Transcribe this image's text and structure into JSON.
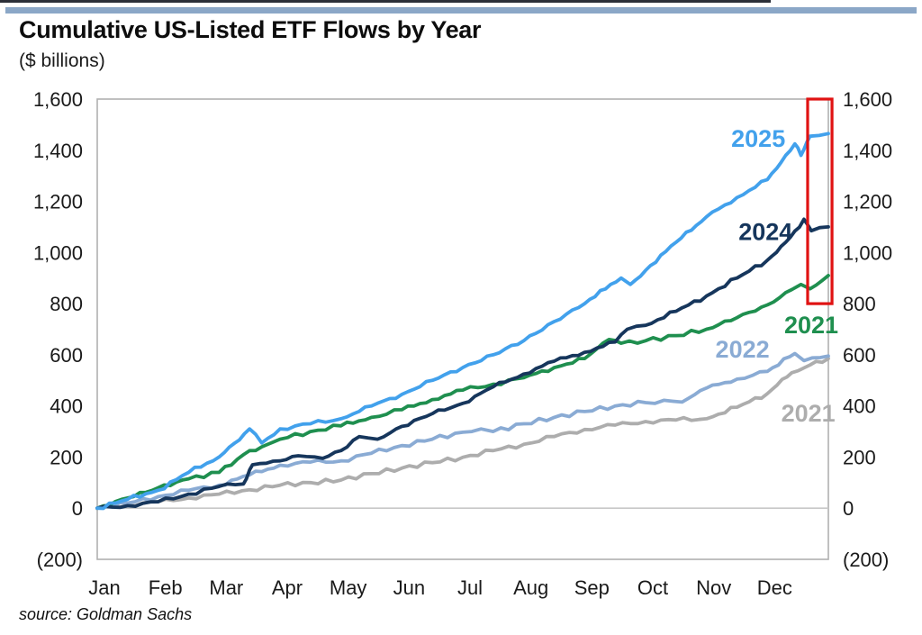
{
  "page": {
    "title": "Cumulative US-Listed ETF Flows by Year",
    "subtitle": "($ billions)",
    "source": "source: Goldman Sachs",
    "top_bar_color": "#8ba7c7"
  },
  "chart_data": {
    "type": "line",
    "title": "Cumulative US-Listed ETF Flows by Year",
    "units": "$ billions",
    "grid": "zero-line-only",
    "legend": "inline-labels-at-line-ends",
    "x_axis": {
      "labels": [
        "Jan",
        "Feb",
        "Mar",
        "Apr",
        "May",
        "Jun",
        "Jul",
        "Aug",
        "Sep",
        "Oct",
        "Nov",
        "Dec"
      ],
      "range_months": [
        0,
        12
      ]
    },
    "y_axis": {
      "ylim": [
        -200,
        1600
      ],
      "tick_values": [
        1600,
        1400,
        1200,
        1000,
        800,
        600,
        400,
        200,
        0,
        -200
      ],
      "tick_labels": [
        "1,600",
        "1,400",
        "1,200",
        "1,000",
        "800",
        "600",
        "400",
        "200",
        "0",
        "(200)"
      ],
      "sides": "both"
    },
    "annotations": {
      "highlight_box": {
        "note": "red box highlighting year-end values",
        "color": "#e01212",
        "month_start": 11.66,
        "month_end": 12.06,
        "value_top": 1600,
        "value_bottom": 800
      }
    },
    "series": [
      {
        "name": "2021-gray",
        "label": "2021",
        "color": "#adadad",
        "label_x_month": 11.67,
        "label_value": 370,
        "points": [
          [
            0,
            0
          ],
          [
            0.5,
            12
          ],
          [
            1,
            25
          ],
          [
            1.5,
            40
          ],
          [
            2,
            55
          ],
          [
            2.5,
            72
          ],
          [
            3,
            90
          ],
          [
            3.5,
            100
          ],
          [
            4,
            110
          ],
          [
            4.5,
            135
          ],
          [
            5,
            157
          ],
          [
            5.5,
            178
          ],
          [
            6,
            199
          ],
          [
            6.5,
            225
          ],
          [
            7,
            250
          ],
          [
            7.5,
            280
          ],
          [
            8,
            308
          ],
          [
            8.5,
            325
          ],
          [
            9,
            339
          ],
          [
            9.5,
            345
          ],
          [
            10,
            350
          ],
          [
            10.5,
            395
          ],
          [
            11,
            448
          ],
          [
            11.4,
            530
          ],
          [
            11.7,
            560
          ],
          [
            12,
            585
          ]
        ]
      },
      {
        "name": "2022",
        "label": "2022",
        "color": "#8aabd4",
        "label_x_month": 10.59,
        "label_value": 620,
        "points": [
          [
            0,
            0
          ],
          [
            0.5,
            20
          ],
          [
            1,
            45
          ],
          [
            1.5,
            70
          ],
          [
            2,
            90
          ],
          [
            2.5,
            130
          ],
          [
            3,
            168
          ],
          [
            3.5,
            180
          ],
          [
            4,
            185
          ],
          [
            4.5,
            215
          ],
          [
            5,
            245
          ],
          [
            5.5,
            270
          ],
          [
            6,
            297
          ],
          [
            6.3,
            310
          ],
          [
            6.5,
            300
          ],
          [
            7,
            330
          ],
          [
            7.5,
            355
          ],
          [
            8,
            378
          ],
          [
            8.5,
            400
          ],
          [
            9,
            413
          ],
          [
            9.3,
            422
          ],
          [
            9.6,
            415
          ],
          [
            10,
            470
          ],
          [
            10.5,
            505
          ],
          [
            11,
            535
          ],
          [
            11.45,
            605
          ],
          [
            11.6,
            577
          ],
          [
            12,
            595
          ]
        ]
      },
      {
        "name": "2021-green",
        "label": "2021",
        "color": "#1f8f4f",
        "label_x_month": 11.72,
        "label_value": 715,
        "points": [
          [
            0,
            0
          ],
          [
            0.5,
            40
          ],
          [
            1,
            80
          ],
          [
            1.5,
            115
          ],
          [
            2,
            140
          ],
          [
            2.5,
            225
          ],
          [
            2.7,
            240
          ],
          [
            3,
            270
          ],
          [
            3.5,
            300
          ],
          [
            4,
            322
          ],
          [
            4.5,
            355
          ],
          [
            5,
            385
          ],
          [
            5.5,
            425
          ],
          [
            6,
            462
          ],
          [
            6.5,
            485
          ],
          [
            7,
            510
          ],
          [
            7.5,
            550
          ],
          [
            8,
            585
          ],
          [
            8.4,
            660
          ],
          [
            8.6,
            645
          ],
          [
            9,
            655
          ],
          [
            9.5,
            675
          ],
          [
            10,
            700
          ],
          [
            10.5,
            745
          ],
          [
            11,
            795
          ],
          [
            11.4,
            855
          ],
          [
            11.55,
            875
          ],
          [
            11.7,
            858
          ],
          [
            12,
            910
          ]
        ]
      },
      {
        "name": "2024",
        "label": "2024",
        "color": "#16365c",
        "label_x_month": 10.97,
        "label_value": 1080,
        "points": [
          [
            0,
            0
          ],
          [
            0.5,
            10
          ],
          [
            1,
            25
          ],
          [
            1.5,
            55
          ],
          [
            2,
            85
          ],
          [
            2.4,
            95
          ],
          [
            2.55,
            170
          ],
          [
            3,
            185
          ],
          [
            3.3,
            205
          ],
          [
            3.7,
            195
          ],
          [
            4,
            225
          ],
          [
            4.3,
            280
          ],
          [
            4.6,
            270
          ],
          [
            5,
            320
          ],
          [
            5.5,
            370
          ],
          [
            6,
            410
          ],
          [
            6.5,
            475
          ],
          [
            7,
            525
          ],
          [
            7.5,
            575
          ],
          [
            8,
            610
          ],
          [
            8.5,
            650
          ],
          [
            8.7,
            700
          ],
          [
            9,
            715
          ],
          [
            9.5,
            770
          ],
          [
            10,
            830
          ],
          [
            10.5,
            900
          ],
          [
            11,
            970
          ],
          [
            11.3,
            1040
          ],
          [
            11.6,
            1130
          ],
          [
            11.72,
            1085
          ],
          [
            12,
            1100
          ]
        ]
      },
      {
        "name": "2025",
        "label": "2025",
        "color": "#42a1ec",
        "label_x_month": 10.85,
        "label_value": 1445,
        "points": [
          [
            0,
            0
          ],
          [
            0.5,
            35
          ],
          [
            1,
            70
          ],
          [
            1.5,
            140
          ],
          [
            2,
            200
          ],
          [
            2.5,
            310
          ],
          [
            2.7,
            255
          ],
          [
            3,
            310
          ],
          [
            3.5,
            330
          ],
          [
            4,
            350
          ],
          [
            4.5,
            400
          ],
          [
            5,
            445
          ],
          [
            5.5,
            500
          ],
          [
            6,
            550
          ],
          [
            6.5,
            600
          ],
          [
            7,
            655
          ],
          [
            7.5,
            730
          ],
          [
            8,
            800
          ],
          [
            8.6,
            900
          ],
          [
            8.75,
            875
          ],
          [
            9,
            930
          ],
          [
            9.5,
            1040
          ],
          [
            10,
            1140
          ],
          [
            10.5,
            1215
          ],
          [
            11,
            1285
          ],
          [
            11.3,
            1380
          ],
          [
            11.45,
            1425
          ],
          [
            11.55,
            1380
          ],
          [
            11.7,
            1455
          ],
          [
            12,
            1465
          ]
        ]
      }
    ]
  }
}
